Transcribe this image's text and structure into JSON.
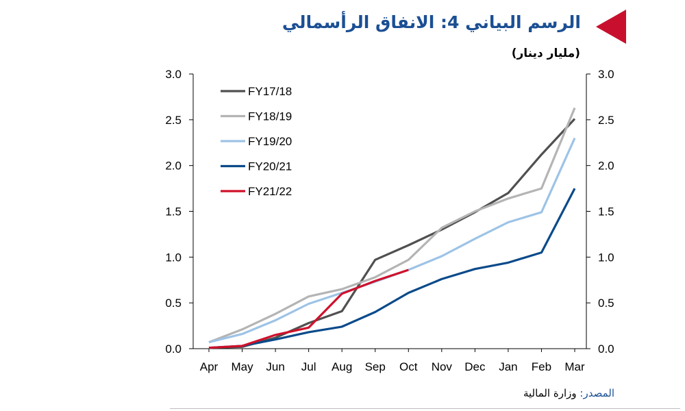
{
  "header": {
    "title": "الرسم البياني 4: الانفاق الرأسمالي",
    "unit": "(مليار دينار)"
  },
  "source": {
    "label": "المصدر:",
    "text": " وزارة المالية"
  },
  "colors": {
    "accent_flag": "#c8102e",
    "title": "#1b4f93"
  },
  "chart_data": {
    "type": "line",
    "x": [
      "Apr",
      "May",
      "Jun",
      "Jul",
      "Aug",
      "Sep",
      "Oct",
      "Nov",
      "Dec",
      "Jan",
      "Feb",
      "Mar"
    ],
    "ylim": [
      0,
      3.0
    ],
    "yticks": [
      "0.0",
      "0.5",
      "1.0",
      "1.5",
      "2.0",
      "2.5",
      "3.0"
    ],
    "ytick_values": [
      0,
      0.5,
      1.0,
      1.5,
      2.0,
      2.5,
      3.0
    ],
    "secondary_y_axis": true,
    "grid": false,
    "legend_position": "top-left",
    "series": [
      {
        "name": "FY17/18",
        "color": "#505050",
        "values": [
          0.01,
          0.02,
          0.12,
          0.28,
          0.41,
          0.97,
          1.13,
          1.3,
          1.49,
          1.7,
          2.12,
          2.51
        ]
      },
      {
        "name": "FY18/19",
        "color": "#b4b4b4",
        "values": [
          0.07,
          0.21,
          0.38,
          0.57,
          0.65,
          0.78,
          0.97,
          1.32,
          1.5,
          1.64,
          1.75,
          2.63
        ]
      },
      {
        "name": "FY19/20",
        "color": "#9dc3e6",
        "values": [
          0.07,
          0.16,
          0.31,
          0.49,
          0.61,
          0.73,
          0.86,
          1.01,
          1.2,
          1.38,
          1.49,
          2.3
        ]
      },
      {
        "name": "FY20/21",
        "color": "#0a4a8a",
        "values": [
          0.01,
          0.03,
          0.1,
          0.18,
          0.24,
          0.4,
          0.61,
          0.76,
          0.87,
          0.94,
          1.05,
          1.75
        ]
      },
      {
        "name": "FY21/22",
        "color": "#d0112b",
        "values": [
          0.01,
          0.03,
          0.15,
          0.23,
          0.6,
          0.74,
          0.86,
          null,
          null,
          null,
          null,
          null
        ]
      }
    ]
  }
}
